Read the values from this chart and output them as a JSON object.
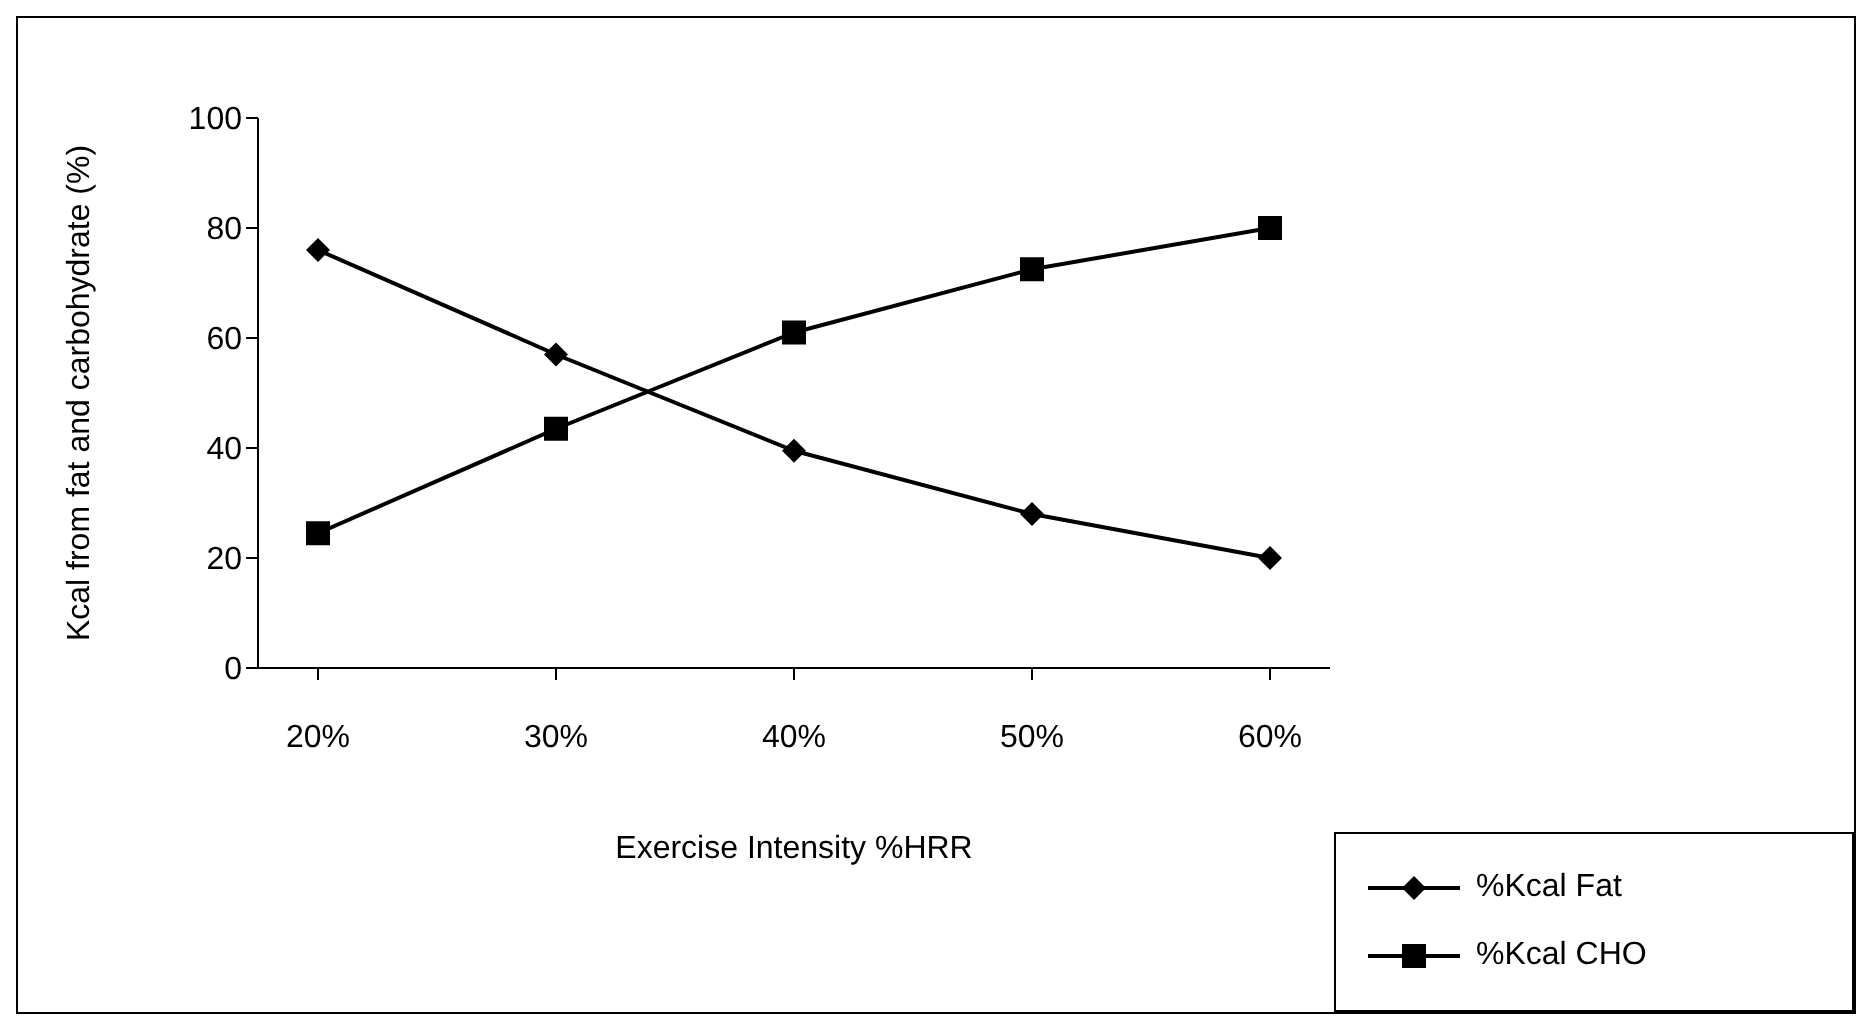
{
  "chart_data": {
    "type": "line",
    "xlabel": "Exercise Intensity %HRR",
    "ylabel": "Kcal from fat and carbohydrate (%)",
    "categories": [
      "20%",
      "30%",
      "40%",
      "50%",
      "60%"
    ],
    "series": [
      {
        "name": "%Kcal Fat",
        "color": "#000000",
        "marker": "diamond",
        "values": [
          76,
          57,
          39.5,
          28,
          20
        ]
      },
      {
        "name": "%Kcal CHO",
        "color": "#000000",
        "marker": "square",
        "values": [
          24.5,
          43.5,
          61,
          72.5,
          80
        ]
      }
    ],
    "ylim": [
      0,
      100
    ],
    "yticks": [
      0,
      20,
      40,
      60,
      80,
      100
    ],
    "grid": false,
    "legend": "bottom right",
    "line_style": "solid"
  }
}
